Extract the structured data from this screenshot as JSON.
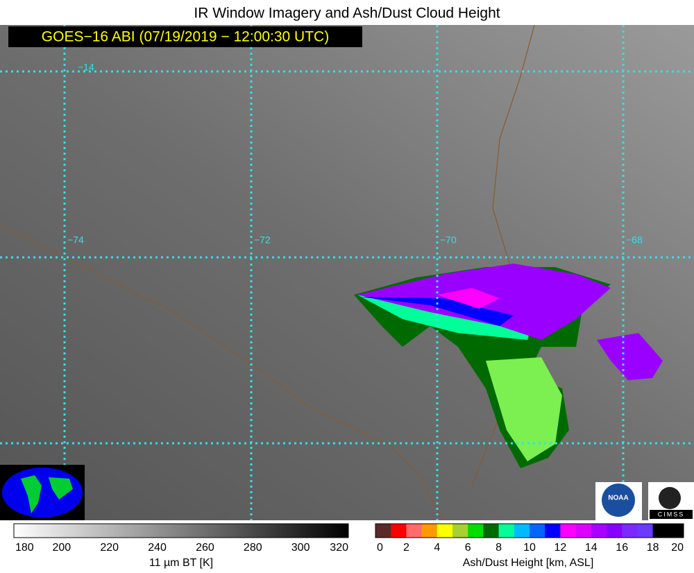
{
  "title": "IR Window Imagery and Ash/Dust Cloud Height",
  "subtitle": "GOES−16 ABI (07/19/2019 − 12:00:30 UTC)",
  "map": {
    "lat_labels": [
      "−14"
    ],
    "lon_labels": [
      "−74",
      "−72",
      "−70",
      "−68"
    ]
  },
  "colorbars": [
    {
      "label": "11 µm BT [K]",
      "ticks": [
        180,
        200,
        220,
        240,
        260,
        280,
        300,
        320
      ]
    },
    {
      "label": "Ash/Dust Height [km, ASL]",
      "ticks": [
        0,
        2,
        4,
        6,
        8,
        10,
        12,
        14,
        16,
        18,
        20
      ],
      "colors": [
        "#5a2a2a",
        "#ff0000",
        "#ff6a6a",
        "#ff9900",
        "#ffff00",
        "#a8d030",
        "#00dd00",
        "#006a00",
        "#00ff99",
        "#00bbff",
        "#0066ff",
        "#0000ff",
        "#ff00ff",
        "#dd00ff",
        "#aa00ff",
        "#8a00ff",
        "#7a2aff",
        "#6a3aff",
        "#000000",
        "#000000"
      ]
    }
  ],
  "logos": {
    "noaa": "NOAA",
    "cimss": "CIMSS"
  }
}
